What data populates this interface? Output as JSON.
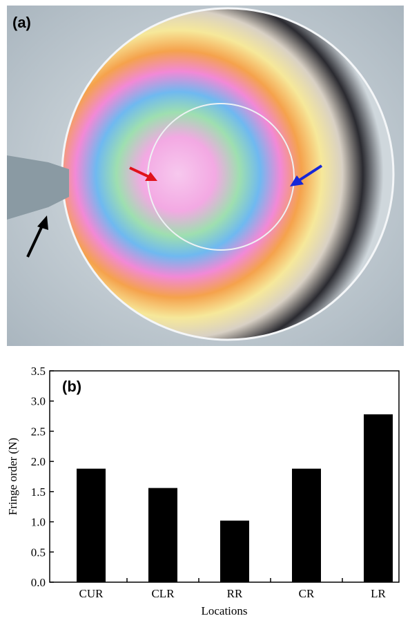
{
  "panel_a": {
    "label": "(a)"
  },
  "chart_data": {
    "type": "bar",
    "panel_label": "(b)",
    "y_label": "Fringe order (N)",
    "x_label": "Locations",
    "categories": [
      "CUR",
      "CLR",
      "RR",
      "CR",
      "LR"
    ],
    "values": [
      1.88,
      1.56,
      1.02,
      1.88,
      2.78
    ],
    "color": "#000000",
    "ylim": [
      0,
      3.5
    ],
    "yticks": [
      {
        "value": 0,
        "label": "0.0"
      },
      {
        "value": 0.5,
        "label": "0.5"
      },
      {
        "value": 1,
        "label": "1.0"
      },
      {
        "value": 1.5,
        "label": "1.5"
      },
      {
        "value": 2,
        "label": "2.0"
      },
      {
        "value": 2.5,
        "label": "2.5"
      },
      {
        "value": 3,
        "label": "3.0"
      },
      {
        "value": 3.5,
        "label": "3.5"
      }
    ],
    "grid": false
  }
}
